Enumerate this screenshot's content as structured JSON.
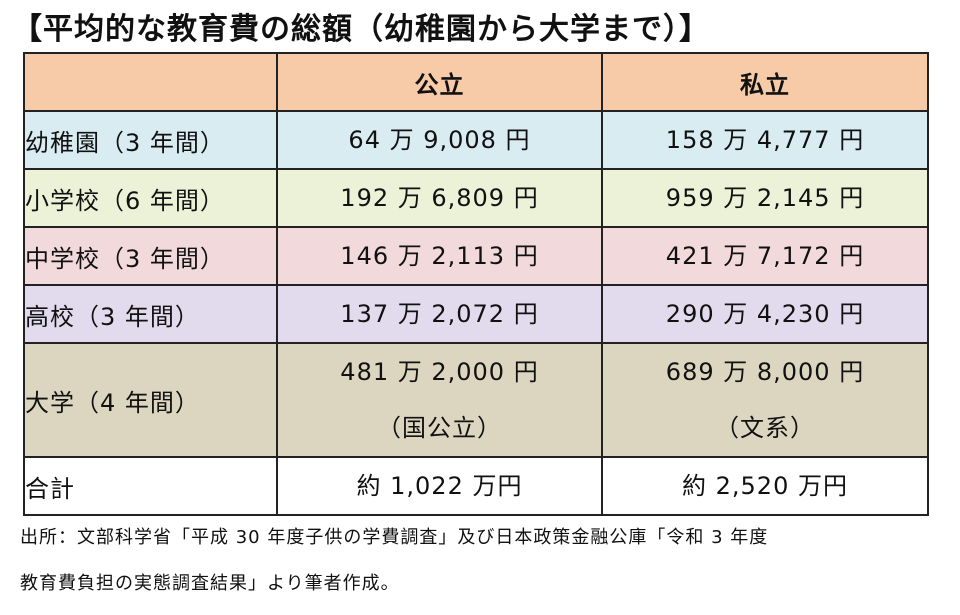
{
  "title": "【平均的な教育費の総額（幼稚園から大学まで）】",
  "colors": {
    "header": "#f8cba8",
    "kindergarten": "#d9ecf2",
    "elementary": "#ebf2d8",
    "junior_high": "#f2d9dc",
    "high_school": "#e2dbee",
    "university": "#dcd6c0",
    "total": "#ffffff"
  },
  "table": {
    "columns": [
      "",
      "公立",
      "私立"
    ],
    "rows": [
      {
        "label": "幼稚園（3 年間）",
        "public": [
          "64 万 9,008 円"
        ],
        "private": [
          "158 万 4,777 円"
        ]
      },
      {
        "label": "小学校（6 年間）",
        "public": [
          "192 万 6,809 円"
        ],
        "private": [
          "959 万 2,145 円"
        ]
      },
      {
        "label": "中学校（3 年間）",
        "public": [
          "146 万 2,113 円"
        ],
        "private": [
          "421 万 7,172 円"
        ]
      },
      {
        "label": "高校（3 年間）",
        "public": [
          "137 万 2,072 円"
        ],
        "private": [
          "290 万 4,230 円"
        ]
      },
      {
        "label": "大学（4 年間）",
        "public": [
          "481 万 2,000 円",
          "（国公立）"
        ],
        "private": [
          "689 万 8,000 円",
          "（文系）"
        ]
      },
      {
        "label": "合計",
        "public": [
          "約 1,022 万円"
        ],
        "private": [
          "約 2,520 万円"
        ]
      }
    ]
  },
  "footnote": {
    "line1": "出所：文部科学省「平成 30 年度子供の学費調査」及び日本政策金融公庫「令和 3 年度",
    "line2": "教育費負担の実態調査結果」より筆者作成。"
  }
}
